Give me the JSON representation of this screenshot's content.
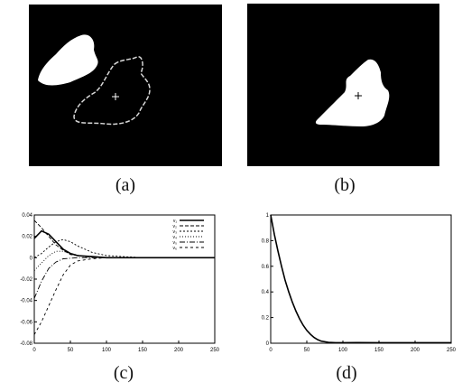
{
  "captions": {
    "a": "(a)",
    "b": "(b)",
    "c": "(c)",
    "d": "(d)"
  },
  "colors": {
    "background": "#000000",
    "blob": "#ffffff",
    "contour": "#d8d8d8"
  },
  "chart_data": [
    {
      "type": "line",
      "panel": "c",
      "xlim": [
        0,
        250
      ],
      "ylim": [
        -0.08,
        0.04
      ],
      "xticks": [
        "0",
        "50",
        "100",
        "150",
        "200",
        "250"
      ],
      "yticks": [
        "0.04",
        "0.02",
        "0",
        "-0.02",
        "-0.04",
        "-0.06",
        "-0.08"
      ],
      "legend_position": "top-right",
      "series": [
        {
          "name": "v₁",
          "dash": "",
          "decay": 22,
          "points": [
            [
              0,
              0.018
            ],
            [
              10,
              0.025
            ],
            [
              20,
              0.022
            ],
            [
              30,
              0.015
            ],
            [
              40,
              0.008
            ],
            [
              50,
              0.004
            ],
            [
              60,
              0.002
            ],
            [
              80,
              0.001
            ],
            [
              100,
              0
            ],
            [
              150,
              0
            ],
            [
              200,
              0
            ],
            [
              250,
              0
            ]
          ]
        },
        {
          "name": "v₂",
          "dash": "4,2",
          "points": [
            [
              0,
              0.035
            ],
            [
              10,
              0.028
            ],
            [
              20,
              0.02
            ],
            [
              30,
              0.012
            ],
            [
              40,
              0.007
            ],
            [
              50,
              0.003
            ],
            [
              70,
              0.001
            ],
            [
              100,
              0
            ],
            [
              150,
              0
            ],
            [
              200,
              0
            ],
            [
              250,
              0
            ]
          ]
        },
        {
          "name": "v₃",
          "dash": "2,2",
          "points": [
            [
              0,
              0
            ],
            [
              10,
              0.004
            ],
            [
              20,
              0.01
            ],
            [
              30,
              0.015
            ],
            [
              40,
              0.017
            ],
            [
              50,
              0.015
            ],
            [
              60,
              0.011
            ],
            [
              80,
              0.005
            ],
            [
              100,
              0.002
            ],
            [
              150,
              0
            ],
            [
              200,
              0
            ],
            [
              250,
              0
            ]
          ]
        },
        {
          "name": "v₄",
          "dash": "1,2",
          "points": [
            [
              0,
              -0.012
            ],
            [
              10,
              -0.005
            ],
            [
              20,
              0.002
            ],
            [
              30,
              0.006
            ],
            [
              40,
              0.006
            ],
            [
              50,
              0.004
            ],
            [
              70,
              0.001
            ],
            [
              100,
              0
            ],
            [
              150,
              0
            ],
            [
              200,
              0
            ],
            [
              250,
              0
            ]
          ]
        },
        {
          "name": "v₅",
          "dash": "6,2,1,2",
          "points": [
            [
              0,
              -0.038
            ],
            [
              10,
              -0.022
            ],
            [
              20,
              -0.01
            ],
            [
              30,
              -0.004
            ],
            [
              40,
              -0.001
            ],
            [
              60,
              0
            ],
            [
              100,
              0
            ],
            [
              150,
              0
            ],
            [
              200,
              0
            ],
            [
              250,
              0
            ]
          ]
        },
        {
          "name": "v₆",
          "dash": "3,3",
          "points": [
            [
              0,
              -0.072
            ],
            [
              10,
              -0.06
            ],
            [
              20,
              -0.045
            ],
            [
              30,
              -0.03
            ],
            [
              40,
              -0.016
            ],
            [
              50,
              -0.007
            ],
            [
              60,
              -0.003
            ],
            [
              80,
              -0.001
            ],
            [
              100,
              0
            ],
            [
              150,
              0
            ],
            [
              200,
              0
            ],
            [
              250,
              0
            ]
          ]
        }
      ]
    },
    {
      "type": "line",
      "panel": "d",
      "xlim": [
        0,
        250
      ],
      "ylim": [
        0,
        1
      ],
      "xticks": [
        "0",
        "50",
        "100",
        "150",
        "200",
        "250"
      ],
      "yticks": [
        "1",
        "0.8",
        "0.6",
        "0.4",
        "0.2",
        "0"
      ],
      "series": [
        {
          "points": [
            [
              0,
              1
            ],
            [
              5,
              0.85
            ],
            [
              10,
              0.72
            ],
            [
              15,
              0.6
            ],
            [
              20,
              0.49
            ],
            [
              25,
              0.4
            ],
            [
              30,
              0.32
            ],
            [
              35,
              0.25
            ],
            [
              40,
              0.19
            ],
            [
              45,
              0.14
            ],
            [
              50,
              0.1
            ],
            [
              55,
              0.07
            ],
            [
              60,
              0.045
            ],
            [
              65,
              0.028
            ],
            [
              70,
              0.016
            ],
            [
              80,
              0.007
            ],
            [
              90,
              0.004
            ],
            [
              100,
              0.004
            ],
            [
              120,
              0.005
            ],
            [
              150,
              0.004
            ],
            [
              200,
              0.004
            ],
            [
              250,
              0.004
            ]
          ]
        }
      ]
    }
  ]
}
